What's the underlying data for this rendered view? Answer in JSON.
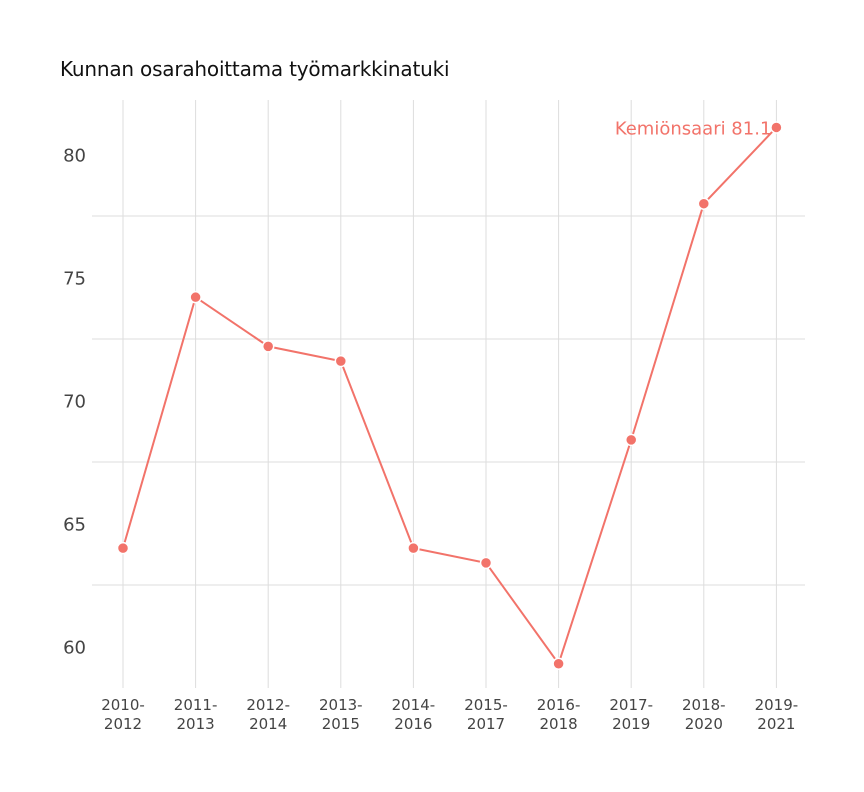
{
  "title": "Kunnan osarahoittama työmarkkinatuki",
  "annotation": "Kemiönsaari 81.1",
  "colors": {
    "series": "#f2736a",
    "grid": "#dddddd",
    "text": "#444444"
  },
  "chart_data": {
    "type": "line",
    "title": "Kunnan osarahoittama työmarkkinatuki",
    "xlabel": "",
    "ylabel": "",
    "categories": [
      [
        "2010-",
        "2012"
      ],
      [
        "2011-",
        "2013"
      ],
      [
        "2012-",
        "2014"
      ],
      [
        "2013-",
        "2015"
      ],
      [
        "2014-",
        "2016"
      ],
      [
        "2015-",
        "2017"
      ],
      [
        "2016-",
        "2018"
      ],
      [
        "2017-",
        "2019"
      ],
      [
        "2018-",
        "2020"
      ],
      [
        "2019-",
        "2021"
      ]
    ],
    "series": [
      {
        "name": "Kemiönsaari",
        "values": [
          64.0,
          74.2,
          72.2,
          71.6,
          64.0,
          63.4,
          59.3,
          68.4,
          78.0,
          81.1
        ]
      }
    ],
    "yticks": [
      60,
      65,
      70,
      75,
      80
    ],
    "ylim": [
      58.7,
      82.2
    ],
    "grid": true,
    "legend": "none",
    "annotations": [
      {
        "text": "Kemiönsaari 81.1",
        "x_index": 9,
        "value": 81.1
      }
    ]
  }
}
